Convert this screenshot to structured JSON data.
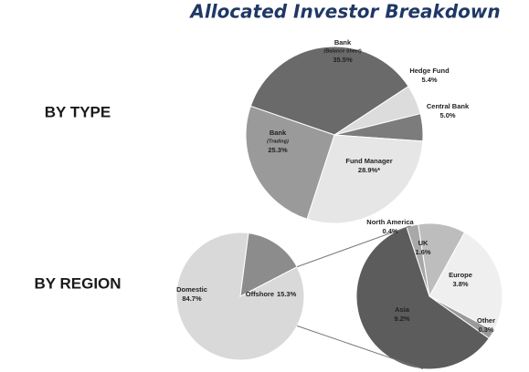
{
  "title": "Allocated Investor Breakdown",
  "chart_data": [
    {
      "type": "pie",
      "title": "BY TYPE",
      "categories": [
        "Bank",
        "Hedge Fund",
        "Central Bank",
        "Fund Manager",
        "Bank"
      ],
      "category_notes": [
        "(Balance Sheet)",
        null,
        null,
        null,
        "(Trading)"
      ],
      "values": [
        35.5,
        5.4,
        5.0,
        28.9,
        25.3
      ],
      "value_labels": [
        "35.5%",
        "5.4%",
        "5.0%",
        "28.9%*",
        "25.3%"
      ],
      "colors": [
        "#6a6a6a",
        "#dcdcdc",
        "#7c7c7c",
        "#e6e6e6",
        "#9a9a9a"
      ]
    },
    {
      "type": "pie-of-pie",
      "title": "BY REGION",
      "categories": [
        "Domestic",
        "Offshore"
      ],
      "values": [
        84.7,
        15.3
      ],
      "value_labels": [
        "84.7%",
        "15.3%"
      ],
      "colors": [
        "#d9d9d9",
        "#8c8c8c"
      ],
      "breakdown": {
        "categories": [
          "North America",
          "UK",
          "Europe",
          "Other",
          "Asia"
        ],
        "values": [
          0.4,
          1.6,
          3.8,
          0.3,
          9.2
        ],
        "value_labels": [
          "0.4%",
          "1.6%",
          "3.8%",
          "0.3%",
          "9.2%"
        ],
        "colors": [
          "#a8a8a8",
          "#bdbdbd",
          "#efefef",
          "#9a9a9a",
          "#5c5c5c"
        ]
      }
    }
  ]
}
